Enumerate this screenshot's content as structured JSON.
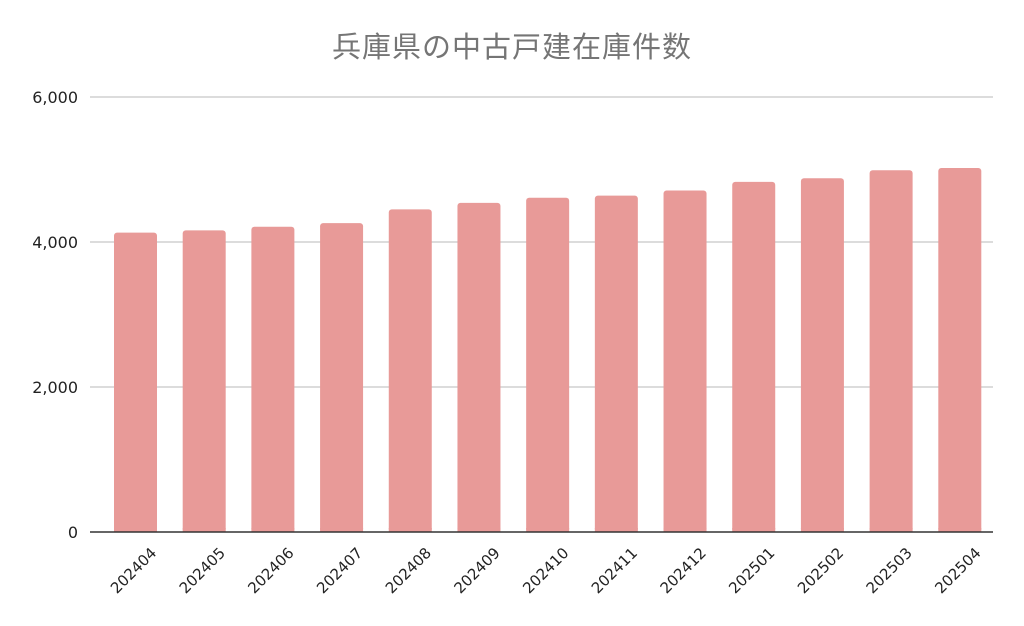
{
  "chart_data": {
    "type": "bar",
    "title": "兵庫県の中古戸建在庫件数",
    "xlabel": "",
    "ylabel": "",
    "categories": [
      "202404",
      "202405",
      "202406",
      "202407",
      "202408",
      "202409",
      "202410",
      "202411",
      "202412",
      "202501",
      "202502",
      "202503",
      "202504"
    ],
    "series": [
      {
        "values": [
          4130,
          4160,
          4210,
          4260,
          4450,
          4540,
          4610,
          4640,
          4710,
          4830,
          4880,
          4990,
          5020
        ]
      }
    ],
    "ylim": [
      0,
      6000
    ],
    "yticks": [
      0,
      2000,
      4000,
      6000
    ],
    "ytick_labels": [
      "0",
      "2,000",
      "4,000",
      "6,000"
    ],
    "grid": true,
    "legend": "none",
    "colors": {
      "bar": "#e89a98",
      "grid": "#c8c8c8",
      "axis": "#333333",
      "title": "#757575",
      "tick_label": "#222222"
    }
  }
}
